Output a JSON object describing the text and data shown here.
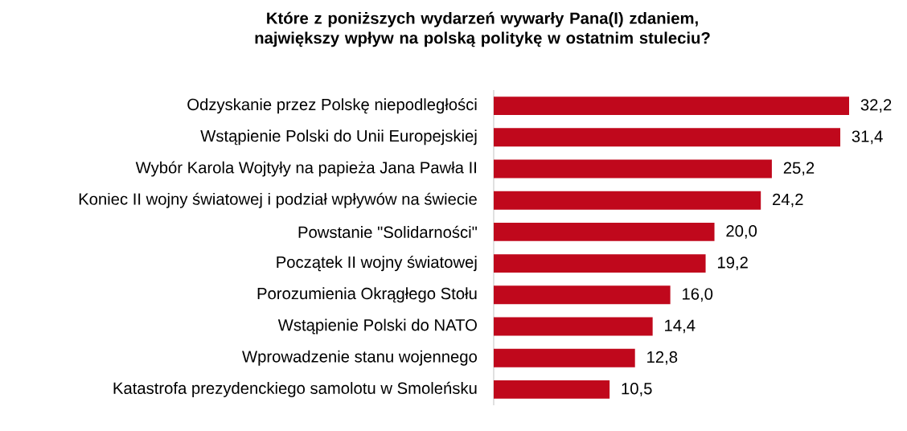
{
  "chart_data": {
    "type": "bar",
    "orientation": "horizontal",
    "title": "Które z poniższych wydarzeń wywarły Pana(I) zdaniem, największy wpływ na polską politykę w ostatnim stuleciu?",
    "categories": [
      "Odzyskanie przez Polskę niepodległości",
      "Wstąpienie Polski do Unii Europejskiej",
      "Wybór Karola Wojtyły na papieża Jana Pawła II",
      "Koniec II wojny światowej i podział wpływów na świecie",
      "Powstanie \"Solidarności\"",
      "Początek II wojny światowej",
      "Porozumienia Okrągłego Stołu",
      "Wstąpienie Polski do NATO",
      "Wprowadzenie stanu wojennego",
      "Katastrofa prezydenckiego samolotu w Smoleńsku"
    ],
    "values": [
      32.2,
      31.4,
      25.2,
      24.2,
      20.0,
      19.2,
      16.0,
      14.4,
      12.8,
      10.5
    ],
    "value_labels": [
      "32,2",
      "31,4",
      "25,2",
      "24,2",
      "20,0",
      "19,2",
      "16,0",
      "14,4",
      "12,8",
      "10,5"
    ],
    "color": "#c0081c"
  }
}
